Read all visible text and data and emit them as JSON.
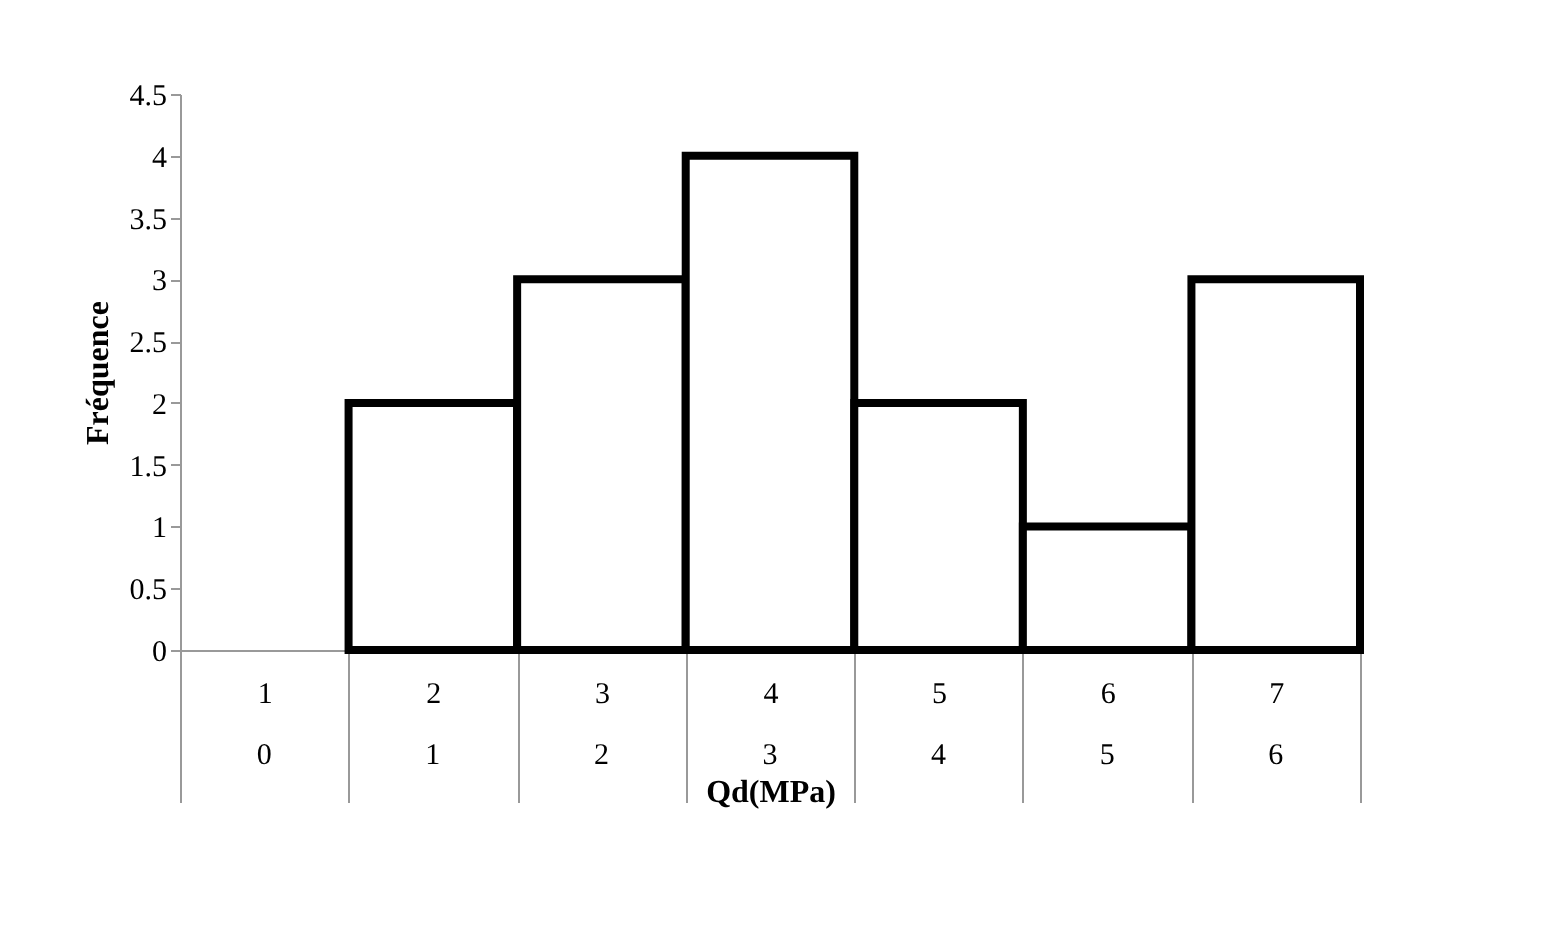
{
  "chart_data": {
    "type": "bar",
    "xlabel": "Qd(MPa)",
    "ylabel": "Fréquence",
    "categories": [
      "1",
      "2",
      "3",
      "4",
      "5",
      "6",
      "7"
    ],
    "values": [
      0,
      2,
      3,
      4,
      2,
      1,
      3
    ],
    "color": "#ffffff",
    "annotations": [
      "0",
      "1",
      "2",
      "3",
      "4",
      "5",
      "6"
    ],
    "ylim": [
      0,
      4.5
    ],
    "yticks": [
      0,
      0.5,
      1,
      1.5,
      2,
      2.5,
      3,
      3.5,
      4,
      4.5
    ],
    "grid": false
  }
}
